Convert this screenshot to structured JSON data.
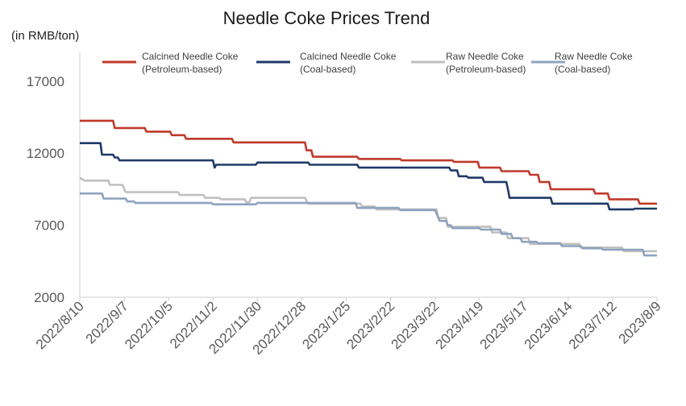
{
  "chart_data": {
    "type": "line",
    "title": "Needle Coke Prices Trend",
    "ylabel": "(in RMB/ton)",
    "ylim": [
      2000,
      19000
    ],
    "y_ticks": [
      2000,
      7000,
      12000,
      17000
    ],
    "x_ticks": [
      "2022/8/10",
      "2022/9/7",
      "2022/10/5",
      "2022/11/2",
      "2022/11/30",
      "2022/12/28",
      "2023/1/25",
      "2023/2/22",
      "2023/3/22",
      "2023/4/19",
      "2023/5/17",
      "2023/6/14",
      "2023/7/12",
      "2023/8/9"
    ],
    "legend_position": "top",
    "series": [
      {
        "name_lines": [
          "Calcined Needle Coke",
          "(Petroleum-based)"
        ],
        "color": "#c0392b",
        "points": [
          [
            "2022-08-10",
            14250
          ],
          [
            "2022-08-31",
            14250
          ],
          [
            "2022-09-01",
            13750
          ],
          [
            "2022-09-20",
            13750
          ],
          [
            "2022-09-21",
            13500
          ],
          [
            "2022-10-06",
            13500
          ],
          [
            "2022-10-07",
            13250
          ],
          [
            "2022-10-15",
            13250
          ],
          [
            "2022-10-16",
            13000
          ],
          [
            "2022-11-14",
            13000
          ],
          [
            "2022-11-15",
            12750
          ],
          [
            "2022-12-30",
            12750
          ],
          [
            "2022-12-31",
            12200
          ],
          [
            "2023-01-03",
            12200
          ],
          [
            "2023-01-04",
            11750
          ],
          [
            "2023-02-01",
            11750
          ],
          [
            "2023-02-02",
            11600
          ],
          [
            "2023-02-28",
            11600
          ],
          [
            "2023-03-01",
            11500
          ],
          [
            "2023-04-02",
            11500
          ],
          [
            "2023-04-03",
            11400
          ],
          [
            "2023-04-18",
            11400
          ],
          [
            "2023-04-19",
            11000
          ],
          [
            "2023-05-02",
            11000
          ],
          [
            "2023-05-03",
            10750
          ],
          [
            "2023-05-20",
            10750
          ],
          [
            "2023-05-21",
            10500
          ],
          [
            "2023-05-26",
            10500
          ],
          [
            "2023-05-27",
            10000
          ],
          [
            "2023-06-02",
            10000
          ],
          [
            "2023-06-03",
            9500
          ],
          [
            "2023-06-30",
            9500
          ],
          [
            "2023-07-01",
            9200
          ],
          [
            "2023-07-09",
            9200
          ],
          [
            "2023-07-10",
            8800
          ],
          [
            "2023-07-28",
            8800
          ],
          [
            "2023-07-29",
            8500
          ],
          [
            "2023-08-09",
            8500
          ]
        ]
      },
      {
        "name_lines": [
          "Calcined Needle Coke",
          "(Coal-based)"
        ],
        "color": "#1f3a68",
        "points": [
          [
            "2022-08-10",
            12700
          ],
          [
            "2022-08-23",
            12700
          ],
          [
            "2022-08-24",
            11900
          ],
          [
            "2022-08-31",
            11900
          ],
          [
            "2022-09-01",
            11700
          ],
          [
            "2022-09-03",
            11700
          ],
          [
            "2022-09-04",
            11500
          ],
          [
            "2022-11-02",
            11500
          ],
          [
            "2022-11-03",
            11000
          ],
          [
            "2022-11-04",
            11200
          ],
          [
            "2022-11-29",
            11200
          ],
          [
            "2022-11-30",
            11350
          ],
          [
            "2023-01-01",
            11350
          ],
          [
            "2023-01-02",
            11200
          ],
          [
            "2023-02-01",
            11200
          ],
          [
            "2023-02-02",
            11000
          ],
          [
            "2023-03-31",
            11000
          ],
          [
            "2023-04-01",
            10800
          ],
          [
            "2023-04-05",
            10800
          ],
          [
            "2023-04-06",
            10400
          ],
          [
            "2023-04-11",
            10400
          ],
          [
            "2023-04-12",
            10300
          ],
          [
            "2023-04-21",
            10300
          ],
          [
            "2023-04-22",
            10000
          ],
          [
            "2023-05-06",
            10000
          ],
          [
            "2023-05-07",
            9500
          ],
          [
            "2023-05-08",
            8900
          ],
          [
            "2023-06-03",
            8900
          ],
          [
            "2023-06-04",
            8500
          ],
          [
            "2023-07-09",
            8500
          ],
          [
            "2023-07-10",
            8100
          ],
          [
            "2023-07-25",
            8100
          ],
          [
            "2023-07-26",
            8150
          ],
          [
            "2023-08-09",
            8150
          ]
        ]
      },
      {
        "name_lines": [
          "Raw Needle Coke",
          "(Petroleum-based)"
        ],
        "color": "#bfbfbf",
        "points": [
          [
            "2022-08-10",
            10300
          ],
          [
            "2022-08-13",
            10100
          ],
          [
            "2022-08-28",
            10100
          ],
          [
            "2022-08-29",
            9800
          ],
          [
            "2022-09-06",
            9800
          ],
          [
            "2022-09-07",
            9500
          ],
          [
            "2022-09-08",
            9300
          ],
          [
            "2022-10-11",
            9300
          ],
          [
            "2022-10-12",
            9100
          ],
          [
            "2022-10-27",
            9100
          ],
          [
            "2022-10-28",
            8900
          ],
          [
            "2022-11-06",
            8900
          ],
          [
            "2022-11-07",
            8800
          ],
          [
            "2022-11-22",
            8800
          ],
          [
            "2022-11-23",
            8600
          ],
          [
            "2022-11-25",
            8600
          ],
          [
            "2022-11-26",
            8900
          ],
          [
            "2022-12-30",
            8900
          ],
          [
            "2023-01-01",
            8500
          ],
          [
            "2023-02-03",
            8500
          ],
          [
            "2023-02-04",
            8300
          ],
          [
            "2023-02-12",
            8300
          ],
          [
            "2023-02-13",
            8100
          ],
          [
            "2023-03-23",
            8100
          ],
          [
            "2023-03-24",
            7500
          ],
          [
            "2023-03-29",
            7500
          ],
          [
            "2023-03-30",
            6900
          ],
          [
            "2023-04-26",
            6900
          ],
          [
            "2023-04-27",
            6500
          ],
          [
            "2023-05-06",
            6500
          ],
          [
            "2023-05-07",
            6100
          ],
          [
            "2023-05-20",
            6100
          ],
          [
            "2023-05-21",
            5700
          ],
          [
            "2023-06-21",
            5700
          ],
          [
            "2023-06-22",
            5450
          ],
          [
            "2023-07-18",
            5450
          ],
          [
            "2023-07-19",
            5200
          ],
          [
            "2023-08-09",
            5200
          ]
        ]
      },
      {
        "name_lines": [
          "Raw Needle Coke",
          "(Coal-based)"
        ],
        "color": "#8ea3be",
        "points": [
          [
            "2022-08-10",
            9200
          ],
          [
            "2022-08-24",
            9200
          ],
          [
            "2022-08-25",
            8850
          ],
          [
            "2022-09-08",
            8850
          ],
          [
            "2022-09-09",
            8650
          ],
          [
            "2022-09-13",
            8650
          ],
          [
            "2022-09-14",
            8550
          ],
          [
            "2022-11-01",
            8550
          ],
          [
            "2022-11-02",
            8450
          ],
          [
            "2022-11-29",
            8450
          ],
          [
            "2022-11-30",
            8550
          ],
          [
            "2023-01-31",
            8550
          ],
          [
            "2023-02-01",
            8200
          ],
          [
            "2023-02-27",
            8200
          ],
          [
            "2023-02-28",
            8050
          ],
          [
            "2023-03-22",
            8050
          ],
          [
            "2023-03-25",
            7300
          ],
          [
            "2023-03-29",
            7300
          ],
          [
            "2023-03-30",
            7000
          ],
          [
            "2023-04-01",
            7000
          ],
          [
            "2023-04-02",
            6800
          ],
          [
            "2023-04-19",
            6800
          ],
          [
            "2023-04-20",
            6700
          ],
          [
            "2023-05-02",
            6700
          ],
          [
            "2023-05-03",
            6400
          ],
          [
            "2023-05-09",
            6400
          ],
          [
            "2023-05-10",
            6100
          ],
          [
            "2023-05-15",
            6100
          ],
          [
            "2023-05-16",
            5850
          ],
          [
            "2023-05-25",
            5850
          ],
          [
            "2023-05-26",
            5750
          ],
          [
            "2023-06-09",
            5750
          ],
          [
            "2023-06-10",
            5550
          ],
          [
            "2023-06-22",
            5550
          ],
          [
            "2023-06-23",
            5400
          ],
          [
            "2023-07-05",
            5400
          ],
          [
            "2023-07-06",
            5300
          ],
          [
            "2023-07-31",
            5300
          ],
          [
            "2023-08-01",
            4900
          ],
          [
            "2023-08-09",
            4900
          ]
        ]
      }
    ]
  }
}
